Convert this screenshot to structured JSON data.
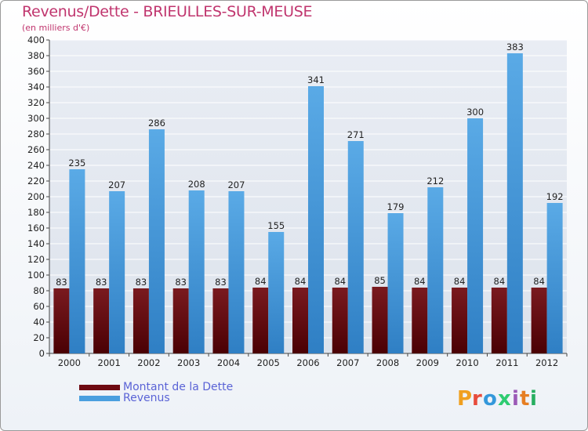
{
  "title": "Revenus/Dette - BRIEULLES-SUR-MEUSE",
  "subtitle": "(en milliers d'€)",
  "brand": "Proxiti",
  "colors": {
    "dette": "#6e0a12",
    "revenus": "#4a9fdf",
    "title": "#c0356e",
    "legend_text": "#5a63d6",
    "grid": "#ffffff"
  },
  "chart_data": {
    "type": "bar",
    "categories": [
      "2000",
      "2001",
      "2002",
      "2003",
      "2004",
      "2005",
      "2006",
      "2007",
      "2008",
      "2009",
      "2010",
      "2011",
      "2012"
    ],
    "series": [
      {
        "name": "Montant de la Dette",
        "values": [
          83,
          83,
          83,
          83,
          83,
          84,
          84,
          84,
          85,
          84,
          84,
          84,
          84
        ]
      },
      {
        "name": "Revenus",
        "values": [
          235,
          207,
          286,
          208,
          207,
          155,
          341,
          271,
          179,
          212,
          300,
          383,
          192
        ]
      }
    ],
    "ylim": [
      0,
      400
    ],
    "ytick_step": 20,
    "grid": true,
    "legend": "bottom-left"
  }
}
